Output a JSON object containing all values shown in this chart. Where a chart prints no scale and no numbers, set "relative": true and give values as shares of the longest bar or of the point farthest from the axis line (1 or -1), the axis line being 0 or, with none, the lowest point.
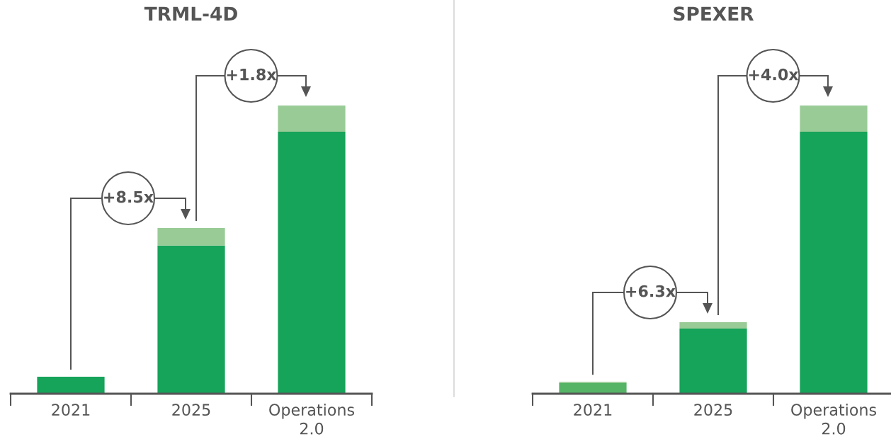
{
  "chart_data": [
    {
      "type": "bar",
      "title": "TRML-4D",
      "relative": true,
      "stacked": true,
      "categories": [
        "2021",
        "2025",
        "Operations\n2.0"
      ],
      "series": [
        {
          "colors": [
            "#16a35a",
            "#16a35a",
            "#16a35a"
          ],
          "values": [
            0.059,
            0.514,
            0.909
          ]
        },
        {
          "color": "#99cb96",
          "values": [
            null,
            0.061,
            0.091
          ]
        }
      ],
      "annotations": [
        "+8.5x",
        "+1.8x"
      ],
      "grid": false,
      "legend": false
    },
    {
      "type": "bar",
      "title": "SPEXER",
      "relative": true,
      "stacked": true,
      "categories": [
        "2021",
        "2025",
        "Operations\n2.0"
      ],
      "series": [
        {
          "colors": [
            "#55b466",
            "#16a35a",
            "#16a35a"
          ],
          "values": [
            0.037,
            0.226,
            0.909
          ]
        },
        {
          "color": "#99cb96",
          "values": [
            0.004,
            0.022,
            0.091
          ]
        }
      ],
      "annotations": [
        "+6.3x",
        "+4.0x"
      ],
      "grid": false,
      "legend": false
    }
  ]
}
